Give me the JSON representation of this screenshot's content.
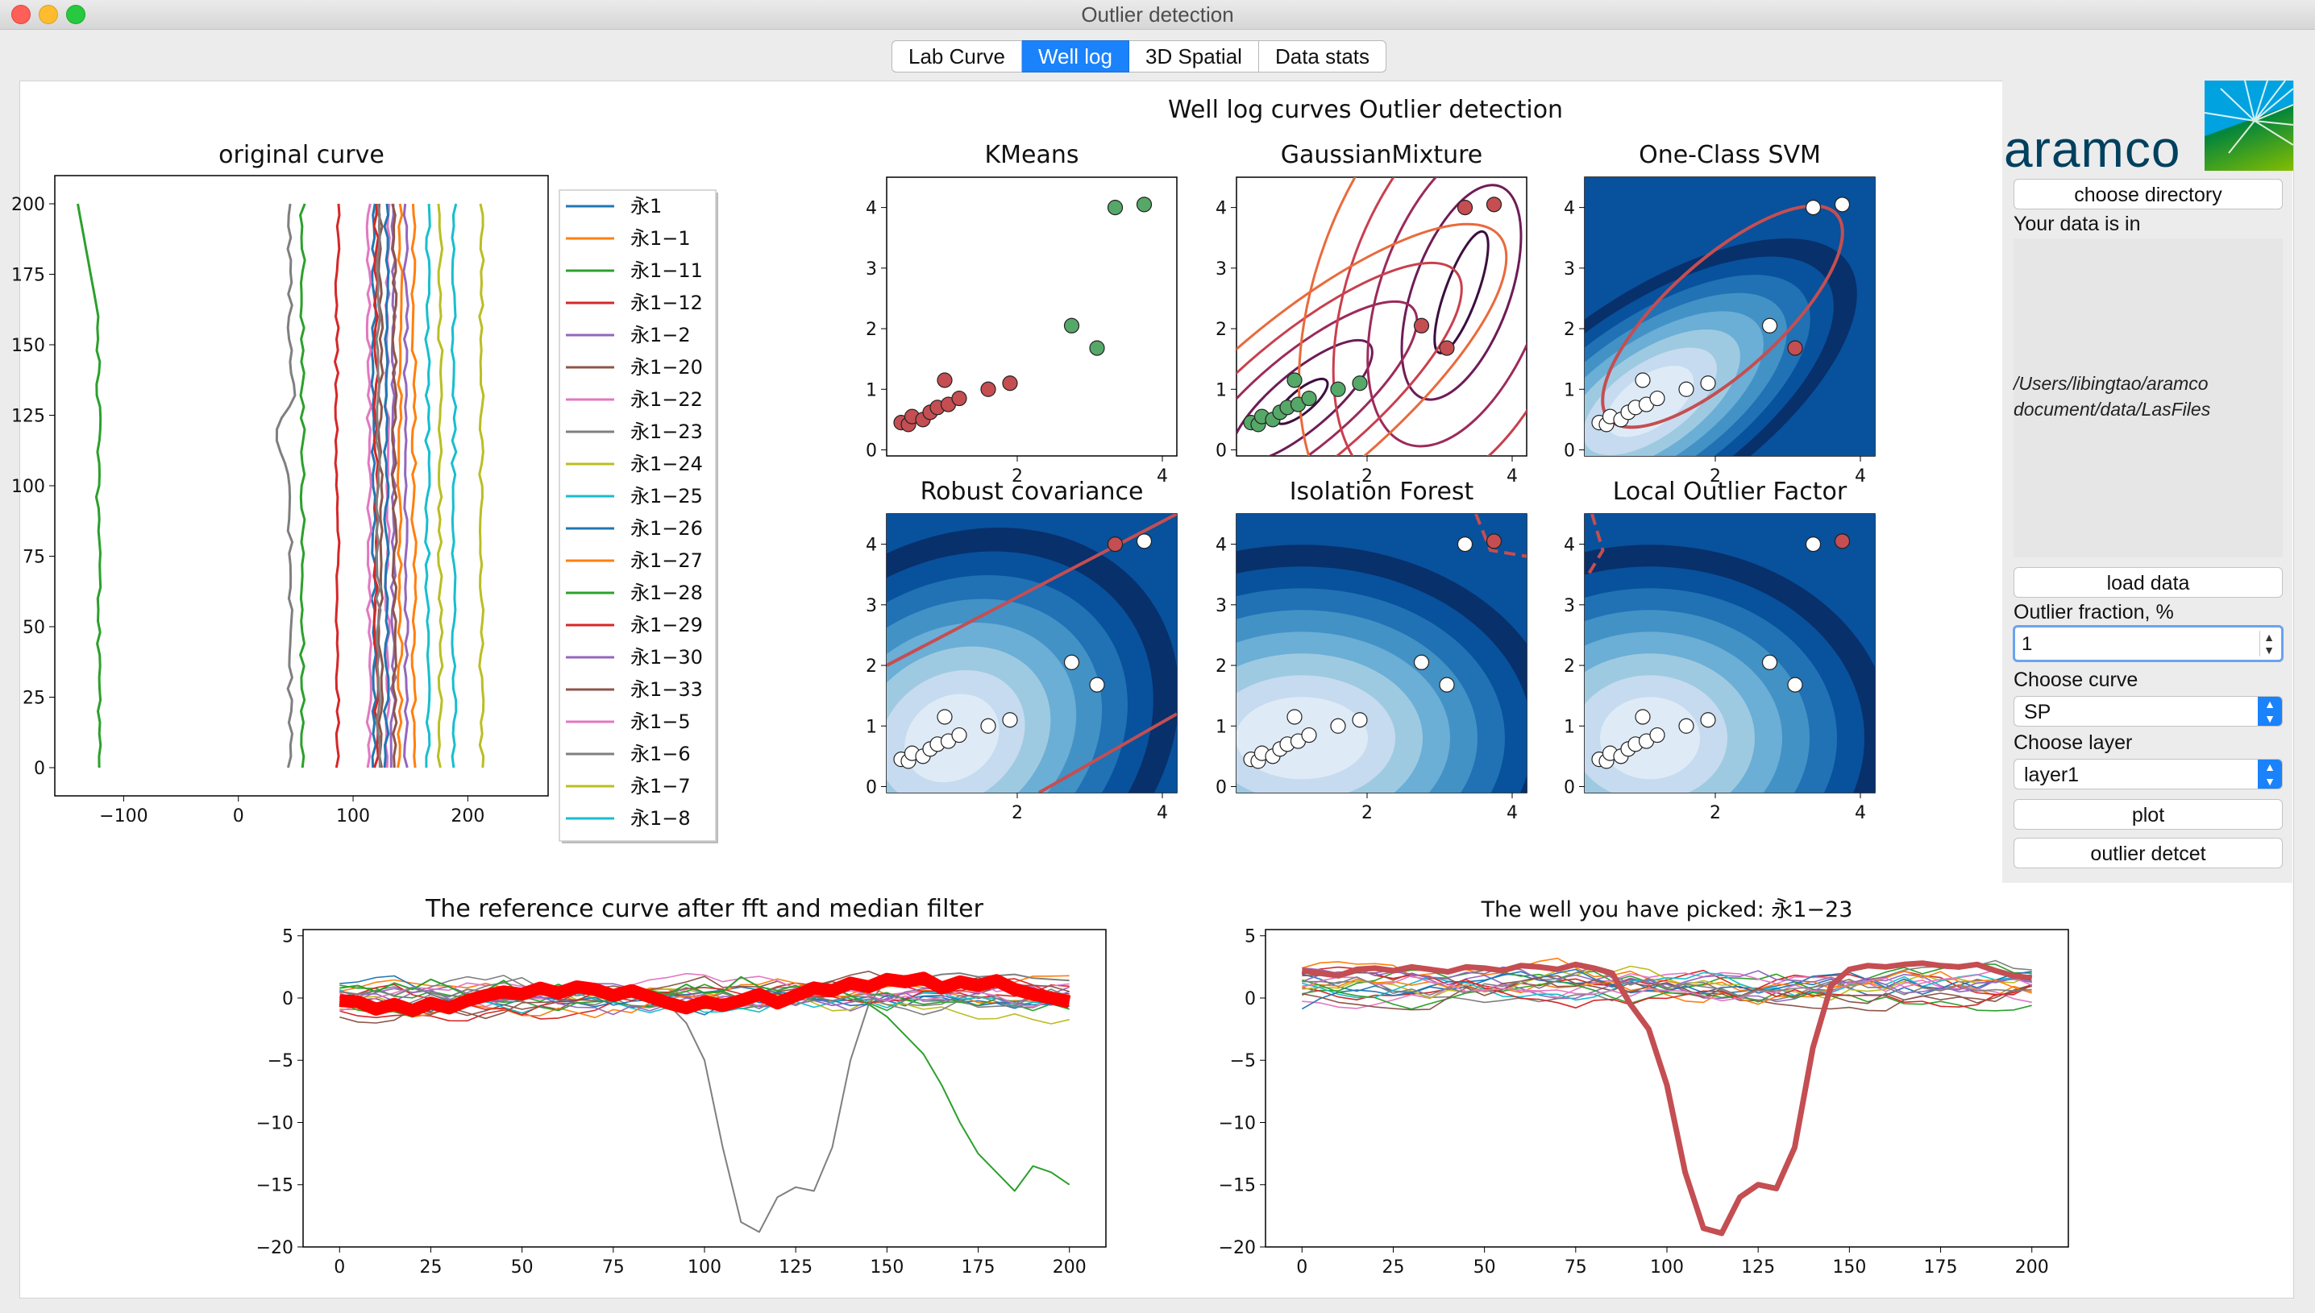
{
  "window": {
    "title": "Outlier detection"
  },
  "tabs": [
    {
      "label": "Lab Curve",
      "active": false
    },
    {
      "label": "Well log",
      "active": true
    },
    {
      "label": "3D Spatial",
      "active": false
    },
    {
      "label": "Data stats",
      "active": false
    }
  ],
  "colors": {
    "accent": "#1a82fb",
    "outlier": "#c44e52",
    "inlier": "#55a868",
    "brand": "#00405f"
  },
  "sidebar": {
    "logo_text": "aramco",
    "choose_directory": "choose directory",
    "data_label": "Your data is in",
    "data_path": "/Users/libingtao/aramco document/data/LasFiles",
    "load_data": "load data",
    "outlier_fraction_label": "Outlier fraction, %",
    "outlier_fraction_value": "1",
    "choose_curve_label": "Choose curve",
    "curve_value": "SP",
    "choose_layer_label": "Choose layer",
    "layer_value": "layer1",
    "plot": "plot",
    "outlier_detect": "outlier detcet"
  },
  "chart_data": [
    {
      "type": "line",
      "title": "original curve",
      "xlim": [
        -160,
        270
      ],
      "ylim": [
        -10,
        210
      ],
      "xticks": [
        -100,
        0,
        100,
        200
      ],
      "yticks": [
        0,
        25,
        50,
        75,
        100,
        125,
        150,
        175,
        200
      ],
      "legend": [
        "永1",
        "永1−1",
        "永1−11",
        "永1−12",
        "永1−2",
        "永1−20",
        "永1−22",
        "永1−23",
        "永1−24",
        "永1−25",
        "永1−26",
        "永1−27",
        "永1−28",
        "永1−29",
        "永1−30",
        "永1−33",
        "永1−5",
        "永1−6",
        "永1−7",
        "永1−8"
      ],
      "legend_position": "right",
      "series_base_x": [
        118,
        141,
        -122,
        86,
        135,
        124,
        130,
        45,
        212,
        188,
        129,
        153,
        56,
        120,
        146,
        136,
        114,
        122,
        176,
        165
      ]
    },
    {
      "type": "scatter",
      "suptitle": "Well log curves Outlier detection",
      "points": [
        [
          0.4,
          0.45
        ],
        [
          0.5,
          0.42
        ],
        [
          0.55,
          0.55
        ],
        [
          0.7,
          0.5
        ],
        [
          0.8,
          0.62
        ],
        [
          0.9,
          0.7
        ],
        [
          1.05,
          0.75
        ],
        [
          1.2,
          0.85
        ],
        [
          1.0,
          1.15
        ],
        [
          1.6,
          1.0
        ],
        [
          1.9,
          1.1
        ],
        [
          2.75,
          2.05
        ],
        [
          3.1,
          1.68
        ],
        [
          3.35,
          4.0
        ],
        [
          3.75,
          4.05
        ]
      ],
      "subplots": [
        {
          "title": "KMeans",
          "outlier_indices": [
            0,
            1,
            2,
            3,
            4,
            5,
            6,
            7,
            8,
            9,
            10
          ],
          "inlier_color": "#55a868",
          "outlier_color": "#c44e52"
        },
        {
          "title": "GaussianMixture",
          "outlier_indices": [
            11,
            12,
            13,
            14
          ]
        },
        {
          "title": "One-Class SVM",
          "outlier_indices": [
            12
          ]
        },
        {
          "title": "Robust covariance",
          "outlier_indices": [
            13
          ]
        },
        {
          "title": "Isolation Forest",
          "outlier_indices": [
            14
          ]
        },
        {
          "title": "Local Outlier Factor",
          "outlier_indices": [
            14
          ]
        }
      ],
      "xlim": [
        0.2,
        4.2
      ],
      "ylim": [
        -0.1,
        4.5
      ],
      "xticks": [
        2,
        4
      ],
      "yticks": [
        0,
        1,
        2,
        3,
        4
      ]
    },
    {
      "type": "line",
      "title": "The reference curve after fft and median filter",
      "x_range": [
        0,
        200
      ],
      "xlim": [
        -10,
        210
      ],
      "ylim": [
        -20,
        5.5
      ],
      "xticks": [
        0,
        25,
        50,
        75,
        100,
        125,
        150,
        175,
        200
      ],
      "yticks": [
        5,
        0,
        -5,
        -10,
        -15,
        -20
      ],
      "reference_series": {
        "color": "#ff0000",
        "values": [
          -0.2,
          -0.3,
          -0.9,
          -0.5,
          -1.0,
          -0.4,
          -0.8,
          -0.2,
          0.2,
          0.5,
          0.3,
          0.8,
          0.4,
          0.9,
          0.7,
          0.2,
          0.6,
          0.1,
          -0.4,
          -0.8,
          -0.3,
          -0.6,
          -0.2,
          0.3,
          -0.4,
          0.2,
          0.8,
          0.6,
          1.2,
          0.9,
          1.5,
          1.3,
          1.6,
          0.8,
          1.3,
          1.0,
          1.4,
          0.7,
          0.3,
          0.0,
          -0.3
        ]
      },
      "special_series": [
        {
          "name": "永1−23",
          "color": "#7f7f7f",
          "values": [
            0.5,
            0.3,
            0.6,
            0.2,
            0.8,
            0.4,
            0.1,
            0.7,
            0.5,
            0.2,
            0.4,
            0.6,
            0.3,
            0.9,
            0.5,
            0.2,
            0.7,
            0.4,
            -0.5,
            -2.0,
            -5.0,
            -12.0,
            -18.0,
            -18.8,
            -16.0,
            -15.2,
            -15.5,
            -12.0,
            -5.0,
            -0.5,
            1.5,
            1.8,
            1.6,
            1.9,
            2.0,
            1.7,
            1.8,
            1.9,
            1.6,
            1.5,
            1.4
          ]
        },
        {
          "name": "永1−11",
          "color": "#2ca02c",
          "values": [
            0.8,
            1.0,
            0.5,
            1.2,
            0.7,
            1.5,
            0.9,
            0.2,
            0.6,
            1.4,
            0.3,
            0.5,
            1.1,
            0.4,
            0.7,
            0.2,
            0.9,
            0.6,
            0.3,
            1.1,
            0.4,
            0.5,
            1.7,
            0.9,
            0.6,
            1.0,
            0.4,
            0.8,
            0.2,
            -0.5,
            -1.5,
            -3.0,
            -4.5,
            -7.0,
            -10.0,
            -12.5,
            -14.0,
            -15.5,
            -13.5,
            -14.0,
            -15.0
          ]
        }
      ]
    },
    {
      "type": "line",
      "title": "The well you have picked: 永1−23",
      "x_range": [
        0,
        200
      ],
      "xlim": [
        -10,
        210
      ],
      "ylim": [
        -20,
        5.5
      ],
      "xticks": [
        0,
        25,
        50,
        75,
        100,
        125,
        150,
        175,
        200
      ],
      "yticks": [
        5,
        0,
        -5,
        -10,
        -15,
        -20
      ],
      "picked_series": {
        "name": "永1−23",
        "color": "#c44e52",
        "values": [
          2.2,
          2.0,
          1.8,
          2.3,
          2.4,
          2.2,
          2.5,
          2.3,
          2.1,
          2.5,
          2.4,
          2.2,
          2.6,
          2.5,
          2.3,
          2.7,
          2.4,
          2.0,
          -0.5,
          -2.5,
          -7.0,
          -14.0,
          -18.5,
          -18.9,
          -16.0,
          -15.0,
          -15.3,
          -12.0,
          -4.0,
          1.0,
          2.3,
          2.6,
          2.5,
          2.7,
          2.8,
          2.6,
          2.5,
          2.7,
          2.2,
          1.8,
          1.6
        ]
      }
    }
  ]
}
